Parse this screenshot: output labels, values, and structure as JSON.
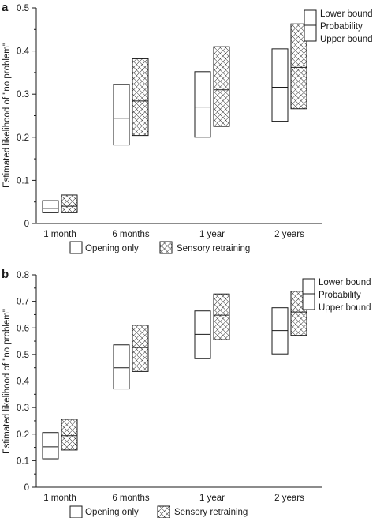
{
  "panel_labels": [
    "a",
    "b"
  ],
  "legend": {
    "opening_only": "Opening only",
    "sensory_retraining": "Sensory retraining",
    "lower_bound": "Lower bound",
    "probability": "Probability",
    "upper_bound": "Upper bound"
  },
  "colors": {
    "stroke": "#1a1a1a",
    "hatch": "#1a1a1a",
    "background": "#ffffff"
  },
  "chart_data": [
    {
      "type": "box-interval",
      "panel": "a",
      "ylabel": "Estimated likelihood of \"no problem\"",
      "xlabel": "",
      "ylim": [
        0,
        0.5
      ],
      "yticks": [
        "0",
        "0.1",
        "0.2",
        "0.3",
        "0.4",
        "0.5"
      ],
      "categories": [
        "1 month",
        "6 months",
        "1 year",
        "2 years"
      ],
      "series": [
        {
          "name": "Opening only",
          "pattern": "none",
          "values": [
            {
              "lower": 0.025,
              "probability": 0.035,
              "upper": 0.053
            },
            {
              "lower": 0.182,
              "probability": 0.244,
              "upper": 0.322
            },
            {
              "lower": 0.2,
              "probability": 0.27,
              "upper": 0.352
            },
            {
              "lower": 0.237,
              "probability": 0.316,
              "upper": 0.405
            }
          ]
        },
        {
          "name": "Sensory retraining",
          "pattern": "crosshatch",
          "values": [
            {
              "lower": 0.025,
              "probability": 0.04,
              "upper": 0.066
            },
            {
              "lower": 0.204,
              "probability": 0.284,
              "upper": 0.382
            },
            {
              "lower": 0.225,
              "probability": 0.31,
              "upper": 0.41
            },
            {
              "lower": 0.266,
              "probability": 0.362,
              "upper": 0.463
            }
          ]
        }
      ],
      "legend_position": "bottom-center",
      "key_position": "top-right",
      "grid": false
    },
    {
      "type": "box-interval",
      "panel": "b",
      "ylabel": "Estimated likelihood of \"no problem\"",
      "xlabel": "",
      "ylim": [
        0,
        0.8
      ],
      "yticks": [
        "0",
        "0.1",
        "0.2",
        "0.3",
        "0.4",
        "0.5",
        "0.6",
        "0.7",
        "0.8"
      ],
      "categories": [
        "1 month",
        "6 months",
        "1 year",
        "2 years"
      ],
      "series": [
        {
          "name": "Opening only",
          "pattern": "none",
          "values": [
            {
              "lower": 0.107,
              "probability": 0.152,
              "upper": 0.206
            },
            {
              "lower": 0.37,
              "probability": 0.45,
              "upper": 0.536
            },
            {
              "lower": 0.484,
              "probability": 0.576,
              "upper": 0.664
            },
            {
              "lower": 0.502,
              "probability": 0.59,
              "upper": 0.676
            }
          ]
        },
        {
          "name": "Sensory retraining",
          "pattern": "crosshatch",
          "values": [
            {
              "lower": 0.14,
              "probability": 0.194,
              "upper": 0.256
            },
            {
              "lower": 0.436,
              "probability": 0.526,
              "upper": 0.61
            },
            {
              "lower": 0.556,
              "probability": 0.648,
              "upper": 0.728
            },
            {
              "lower": 0.572,
              "probability": 0.66,
              "upper": 0.738
            }
          ]
        }
      ],
      "legend_position": "bottom-center",
      "key_position": "top-right",
      "grid": false
    }
  ]
}
